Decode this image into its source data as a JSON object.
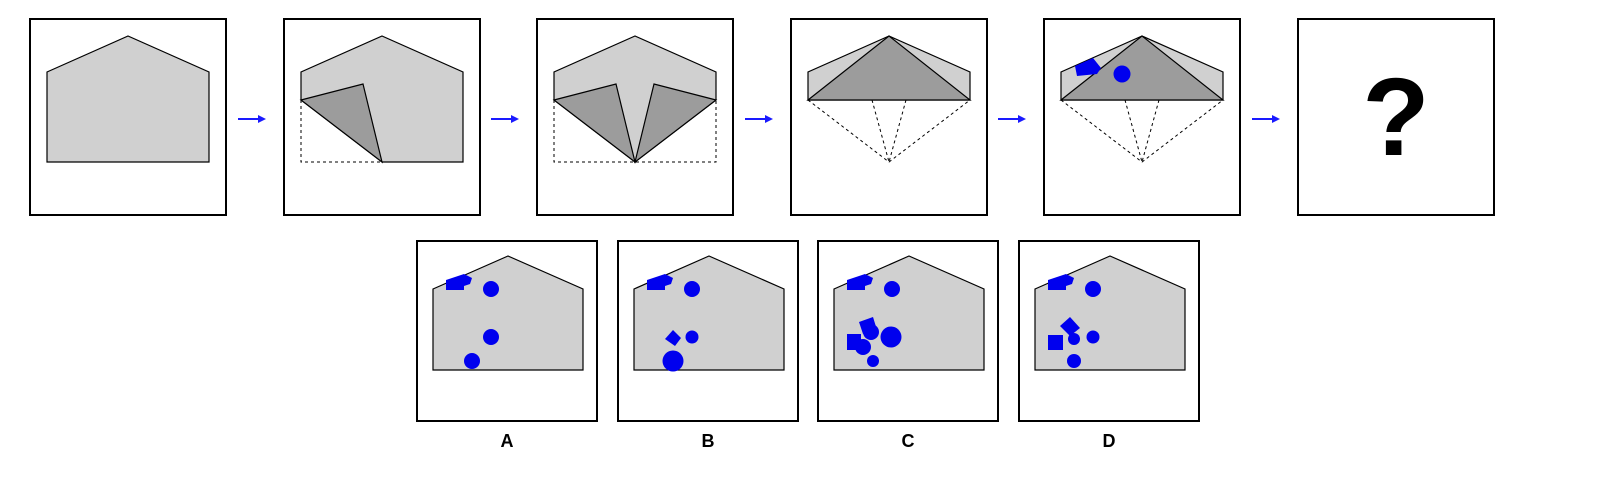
{
  "puzzle": {
    "question_mark": "?",
    "step_count": 5,
    "colors": {
      "paper": "#d0d0d0",
      "folded_flap": "#9c9c9c",
      "punch": "#0000ee",
      "arrow": "#1a1aff",
      "outline": "#000000"
    }
  },
  "options": [
    {
      "label": "A"
    },
    {
      "label": "B"
    },
    {
      "label": "C"
    },
    {
      "label": "D"
    }
  ]
}
